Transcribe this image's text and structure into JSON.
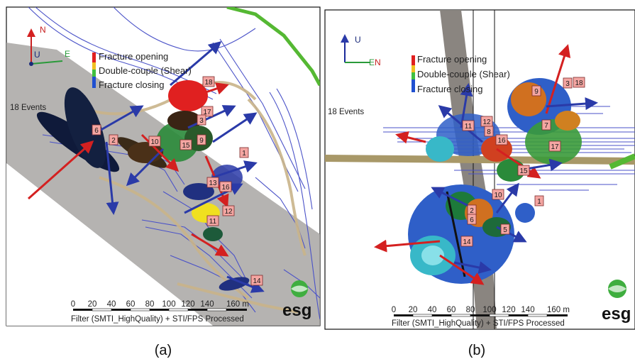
{
  "panels": [
    {
      "caption": "(a)",
      "axis_labels": {
        "north": "N",
        "up": "U",
        "east": "E"
      },
      "legend": {
        "items": [
          {
            "label": "Fracture opening",
            "color": "#e02020"
          },
          {
            "label": "Double-couple (Shear)",
            "color": "#f0e020"
          },
          {
            "label": "Fracture closing",
            "color": "#2050d0"
          }
        ]
      },
      "events_label": "18 Events",
      "filter_label": "Filter (SMTI_HighQuality) + STI/FPS Processed",
      "scale_ticks": [
        "0",
        "20",
        "40",
        "60",
        "80",
        "100",
        "120",
        "140",
        "160 m"
      ],
      "logo": "esg",
      "event_tags": [
        "18",
        "17",
        "6",
        "2",
        "10",
        "3",
        "15",
        "9",
        "1",
        "13",
        "16",
        "12",
        "11",
        "14"
      ]
    },
    {
      "caption": "(b)",
      "axis_labels": {
        "up": "U",
        "east": "E",
        "north": "N"
      },
      "legend": {
        "items": [
          {
            "label": "Fracture opening",
            "color": "#e02020"
          },
          {
            "label": "Double-couple (Shear)",
            "color": "#f0e020"
          },
          {
            "label": "Fracture closing",
            "color": "#2050d0"
          }
        ]
      },
      "events_label": "18 Events",
      "filter_label": "Filter (SMTI_HighQuality) + STI/FPS Processed",
      "scale_ticks": [
        "0",
        "20",
        "40",
        "60",
        "80",
        "100",
        "120",
        "140",
        "160 m"
      ],
      "logo": "esg",
      "event_tags": [
        "3",
        "18",
        "9",
        "11",
        "12",
        "8",
        "16",
        "7",
        "17",
        "15",
        "10",
        "2",
        "6",
        "1",
        "5",
        "14"
      ]
    }
  ]
}
